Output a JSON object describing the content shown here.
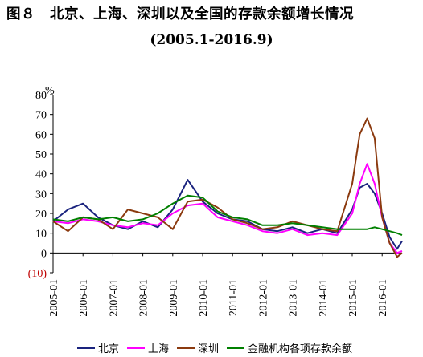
{
  "title": "图８　北京、上海、深圳以及全国的存款余额增长情况",
  "subtitle": "(2005.1-2016.9)",
  "chart_data": {
    "type": "line",
    "title": "图８　北京、上海、深圳以及全国的存款余额增长情况",
    "subtitle": "(2005.1-2016.9)",
    "ylabel": "%",
    "ylim": [
      -10,
      80
    ],
    "yticks": [
      80,
      70,
      60,
      50,
      40,
      30,
      20,
      10,
      0,
      -10
    ],
    "ytick_labels": [
      "80",
      "70",
      "60",
      "50",
      "40",
      "30",
      "20",
      "10",
      "0",
      "(10)"
    ],
    "x": [
      "2005-01",
      "2005-07",
      "2006-01",
      "2006-07",
      "2007-01",
      "2007-07",
      "2008-01",
      "2008-07",
      "2009-01",
      "2009-07",
      "2010-01",
      "2010-07",
      "2011-01",
      "2011-07",
      "2012-01",
      "2012-07",
      "2013-01",
      "2013-07",
      "2014-01",
      "2014-07",
      "2015-01",
      "2015-04",
      "2015-07",
      "2015-10",
      "2016-01",
      "2016-04",
      "2016-07",
      "2016-09"
    ],
    "xtick_labels": [
      "2005-01",
      "2006-01",
      "2007-01",
      "2008-01",
      "2009-01",
      "2010-01",
      "2011-01",
      "2012-01",
      "2013-01",
      "2014-01",
      "2015-01",
      "2016-01"
    ],
    "series": [
      {
        "name": "北京",
        "color": "#1a237e",
        "values": [
          16,
          22,
          25,
          18,
          14,
          12,
          16,
          13,
          22,
          37,
          26,
          20,
          17,
          16,
          12,
          11,
          13,
          10,
          12,
          10,
          22,
          33,
          35,
          30,
          20,
          8,
          2,
          6
        ]
      },
      {
        "name": "上海",
        "color": "#ff00ff",
        "values": [
          16,
          15,
          17,
          16,
          14,
          13,
          15,
          14,
          20,
          24,
          25,
          18,
          16,
          14,
          11,
          10,
          12,
          9,
          10,
          9,
          20,
          35,
          45,
          35,
          18,
          5,
          0,
          1
        ]
      },
      {
        "name": "深圳",
        "color": "#8b3a0f",
        "values": [
          16,
          11,
          18,
          17,
          12,
          22,
          20,
          18,
          12,
          26,
          27,
          23,
          17,
          15,
          12,
          13,
          16,
          14,
          12,
          11,
          35,
          60,
          68,
          58,
          18,
          5,
          -2,
          0
        ]
      },
      {
        "name": "金融机构各项存款余额",
        "color": "#008000",
        "values": [
          17,
          16,
          18,
          17,
          18,
          16,
          17,
          20,
          25,
          29,
          28,
          21,
          18,
          17,
          14,
          14,
          15,
          14,
          13,
          12,
          12,
          12,
          12,
          13,
          12,
          11,
          10,
          9
        ]
      }
    ],
    "grid": false,
    "legend": "bottom"
  }
}
